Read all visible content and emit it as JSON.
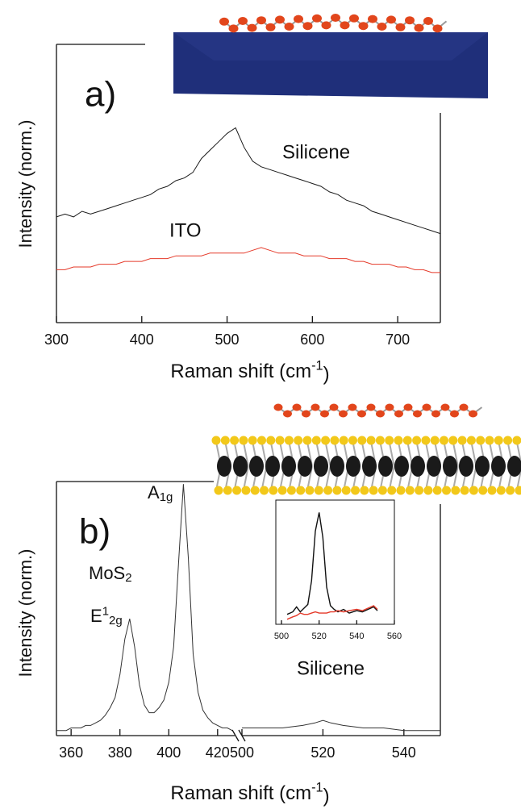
{
  "chart_data": [
    {
      "type": "line",
      "panel_label": "a)",
      "ylabel": "Intensity (norm.)",
      "xlabel": [
        "Raman shift (cm",
        "-1",
        ")"
      ],
      "x": [
        300,
        310,
        320,
        330,
        340,
        350,
        360,
        370,
        380,
        390,
        400,
        410,
        420,
        430,
        440,
        450,
        460,
        470,
        480,
        490,
        500,
        510,
        520,
        530,
        540,
        550,
        560,
        570,
        580,
        590,
        600,
        610,
        620,
        630,
        640,
        650,
        660,
        670,
        680,
        690,
        700,
        710,
        720,
        730,
        740,
        750
      ],
      "series": [
        {
          "name": "Silicene",
          "color": "#1a1a1a",
          "values": [
            0.38,
            0.39,
            0.38,
            0.4,
            0.39,
            0.4,
            0.41,
            0.42,
            0.43,
            0.44,
            0.45,
            0.46,
            0.48,
            0.49,
            0.51,
            0.52,
            0.54,
            0.59,
            0.62,
            0.65,
            0.68,
            0.7,
            0.63,
            0.58,
            0.56,
            0.55,
            0.54,
            0.53,
            0.52,
            0.51,
            0.5,
            0.49,
            0.47,
            0.46,
            0.44,
            0.43,
            0.42,
            0.4,
            0.39,
            0.38,
            0.37,
            0.36,
            0.35,
            0.34,
            0.33,
            0.32
          ]
        },
        {
          "name": "ITO",
          "color": "#e53a2a",
          "values": [
            0.19,
            0.19,
            0.2,
            0.2,
            0.2,
            0.21,
            0.21,
            0.21,
            0.22,
            0.22,
            0.22,
            0.23,
            0.23,
            0.23,
            0.24,
            0.24,
            0.24,
            0.24,
            0.25,
            0.25,
            0.25,
            0.25,
            0.25,
            0.26,
            0.27,
            0.26,
            0.25,
            0.25,
            0.25,
            0.24,
            0.24,
            0.24,
            0.23,
            0.23,
            0.23,
            0.22,
            0.22,
            0.21,
            0.21,
            0.21,
            0.2,
            0.2,
            0.19,
            0.19,
            0.18,
            0.18
          ]
        }
      ],
      "xlim": [
        300,
        750
      ],
      "ylim": [
        0,
        1
      ],
      "xticks": [
        300,
        400,
        500,
        600,
        700
      ]
    },
    {
      "type": "line",
      "panel_label": "b)",
      "ylabel": "Intensity (norm.)",
      "xlabel": [
        "Raman shift (cm",
        "-1",
        ")"
      ],
      "annotations": {
        "material": [
          "MoS",
          "2"
        ],
        "e_mode": [
          "E",
          "1",
          "2g"
        ],
        "a_mode": [
          "A",
          "1g"
        ]
      },
      "x": [
        354,
        356,
        358,
        360,
        362,
        364,
        366,
        368,
        370,
        372,
        374,
        376,
        378,
        380,
        382,
        384,
        386,
        388,
        390,
        392,
        394,
        396,
        398,
        400,
        402,
        404,
        406,
        408,
        410,
        412,
        414,
        416,
        418,
        420,
        422,
        424,
        426
      ],
      "series": [
        {
          "color": "#333333",
          "values": [
            0.02,
            0.02,
            0.02,
            0.03,
            0.03,
            0.03,
            0.04,
            0.04,
            0.05,
            0.06,
            0.08,
            0.11,
            0.15,
            0.24,
            0.38,
            0.46,
            0.35,
            0.2,
            0.12,
            0.09,
            0.09,
            0.11,
            0.14,
            0.21,
            0.35,
            0.68,
            0.99,
            0.7,
            0.32,
            0.17,
            0.1,
            0.07,
            0.05,
            0.04,
            0.03,
            0.03,
            0.02
          ]
        }
      ],
      "xlim": [
        354,
        427
      ],
      "ylim": [
        0,
        1
      ],
      "xticks": [
        360,
        380,
        400,
        420
      ]
    },
    {
      "type": "line",
      "annotation": "Silicene",
      "x": [
        500,
        505,
        510,
        515,
        518,
        520,
        522,
        525,
        530,
        535,
        540,
        545,
        549
      ],
      "series": [
        {
          "color": "#333333",
          "values": [
            0.03,
            0.03,
            0.03,
            0.04,
            0.05,
            0.06,
            0.05,
            0.04,
            0.03,
            0.03,
            0.02,
            0.02,
            0.02
          ]
        }
      ],
      "xlim": [
        500,
        549
      ],
      "ylim": [
        0,
        1
      ],
      "xticks": [
        500,
        520,
        540
      ]
    },
    {
      "type": "line",
      "x": [
        503,
        506,
        508,
        510,
        512,
        514,
        516,
        518,
        520,
        522,
        524,
        526,
        528,
        530,
        533,
        536,
        540,
        543,
        546,
        549,
        551
      ],
      "series": [
        {
          "color": "#111111",
          "values": [
            0.08,
            0.1,
            0.14,
            0.1,
            0.13,
            0.16,
            0.35,
            0.75,
            0.9,
            0.7,
            0.3,
            0.15,
            0.12,
            0.1,
            0.12,
            0.09,
            0.11,
            0.1,
            0.12,
            0.14,
            0.11
          ]
        },
        {
          "color": "#e53a2a",
          "values": [
            0.04,
            0.06,
            0.07,
            0.09,
            0.08,
            0.08,
            0.09,
            0.1,
            0.09,
            0.09,
            0.09,
            0.1,
            0.1,
            0.11,
            0.1,
            0.11,
            0.12,
            0.11,
            0.13,
            0.15,
            0.12
          ]
        }
      ],
      "xlim": [
        497,
        560
      ],
      "ylim": [
        0,
        1
      ],
      "xticks": [
        500,
        520,
        540,
        560
      ]
    }
  ]
}
